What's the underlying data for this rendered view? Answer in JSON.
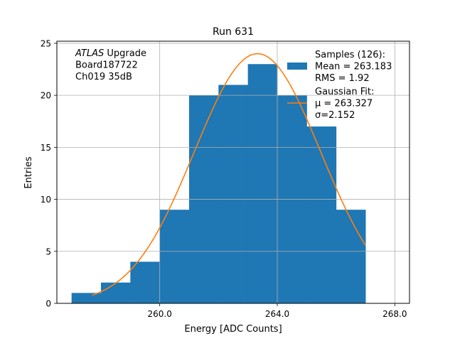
{
  "chart_data": {
    "type": "bar",
    "title": "Run 631",
    "xlabel": "Energy [ADC Counts]",
    "ylabel": "Entries",
    "xlim": [
      256.5,
      268.5
    ],
    "ylim": [
      0,
      25.2
    ],
    "grid": true,
    "x_ticks": [
      260,
      264,
      268
    ],
    "x_tick_labels": [
      "260.0",
      "264.0",
      "268.0"
    ],
    "y_ticks": [
      0,
      5,
      10,
      15,
      20,
      25
    ],
    "y_tick_labels": [
      "0",
      "5",
      "10",
      "15",
      "20",
      "25"
    ],
    "bin_edges": [
      257,
      258,
      259,
      260,
      261,
      262,
      263,
      264,
      265,
      266,
      267
    ],
    "values": [
      1,
      2,
      4,
      9,
      20,
      21,
      23,
      20,
      17,
      9
    ],
    "fit": {
      "type": "gaussian",
      "mu": 263.327,
      "sigma": 2.152,
      "amplitude": 24,
      "x_range": [
        257.7,
        267.0
      ]
    },
    "annotation": {
      "lines": [
        {
          "italic": "ATLAS",
          "text": " Upgrade"
        },
        {
          "italic": "",
          "text": " Board187722"
        },
        {
          "italic": "",
          "text": " Ch019 35dB"
        }
      ]
    },
    "legend": {
      "placement": "top-right",
      "entries": [
        {
          "kind": "patch",
          "lines": [
            "Samples (126):",
            " Mean = 263.183",
            " RMS = 1.92"
          ]
        },
        {
          "kind": "line",
          "lines": [
            "Gaussian Fit:",
            " μ = 263.327",
            " σ=2.152"
          ]
        }
      ]
    },
    "colors": {
      "bars": "#1f77b4",
      "fit": "#ff7f0e",
      "grid": "#b0b0b0"
    }
  }
}
